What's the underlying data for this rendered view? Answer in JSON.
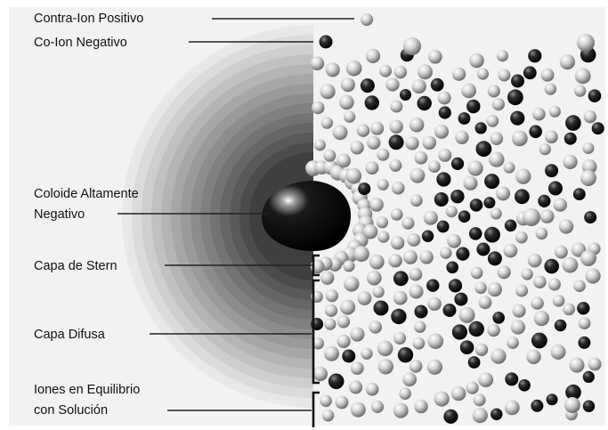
{
  "labels": {
    "positive_counter_ion": "Contra-Ion Positivo",
    "negative_co_ion": "Co-Ion Negativo",
    "colloid_line1": "Coloide Altamente",
    "colloid_line2": "Negativo",
    "stern_layer": "Capa de Stern",
    "diffuse_layer": "Capa Difusa",
    "equilibrium_line1": "Iones en Equilibrio",
    "equilibrium_line2": "con Solución"
  },
  "colors": {
    "background_panel": "#f2f2f2",
    "positive_ion": "#d7d7d7",
    "negative_ion": "#1c1c1c",
    "colloid": "#000000",
    "leader_line": "#222222"
  }
}
